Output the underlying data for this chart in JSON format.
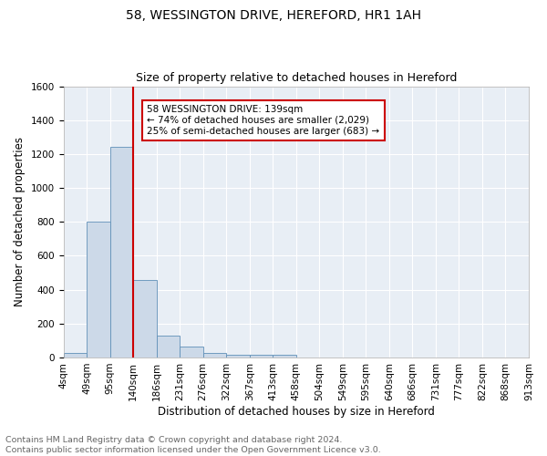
{
  "title": "58, WESSINGTON DRIVE, HEREFORD, HR1 1AH",
  "subtitle": "Size of property relative to detached houses in Hereford",
  "xlabel": "Distribution of detached houses by size in Hereford",
  "ylabel": "Number of detached properties",
  "footnote1": "Contains HM Land Registry data © Crown copyright and database right 2024.",
  "footnote2": "Contains public sector information licensed under the Open Government Licence v3.0.",
  "bin_labels": [
    "4sqm",
    "49sqm",
    "95sqm",
    "140sqm",
    "186sqm",
    "231sqm",
    "276sqm",
    "322sqm",
    "367sqm",
    "413sqm",
    "458sqm",
    "504sqm",
    "549sqm",
    "595sqm",
    "640sqm",
    "686sqm",
    "731sqm",
    "777sqm",
    "822sqm",
    "868sqm",
    "913sqm"
  ],
  "bar_heights": [
    25,
    800,
    1240,
    455,
    130,
    62,
    25,
    18,
    15,
    18,
    0,
    0,
    0,
    0,
    0,
    0,
    0,
    0,
    0,
    0
  ],
  "bar_color": "#ccd9e8",
  "bar_edge_color": "#6090b8",
  "vline_color": "#cc0000",
  "annotation_text": "58 WESSINGTON DRIVE: 139sqm\n← 74% of detached houses are smaller (2,029)\n25% of semi-detached houses are larger (683) →",
  "annotation_box_color": "#ffffff",
  "annotation_box_edge": "#cc0000",
  "ylim": [
    0,
    1600
  ],
  "yticks": [
    0,
    200,
    400,
    600,
    800,
    1000,
    1200,
    1400,
    1600
  ],
  "fig_bg_color": "#ffffff",
  "axes_bg_color": "#e8eef5",
  "grid_color": "#ffffff",
  "title_fontsize": 10,
  "subtitle_fontsize": 9,
  "axis_label_fontsize": 8.5,
  "tick_fontsize": 7.5,
  "annotation_fontsize": 7.5,
  "footnote_fontsize": 6.8
}
